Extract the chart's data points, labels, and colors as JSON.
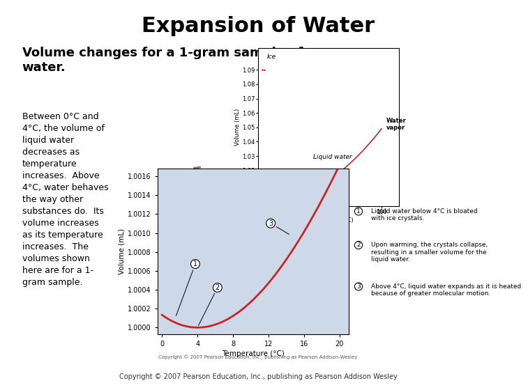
{
  "title": "Expansion of Water",
  "subtitle": "Volume changes for a 1-gram sample of\nwater.",
  "left_text": "Between 0°C and\n4°C, the volume of\nliquid water\ndecreases as\ntemperature\nincreases.  Above\n4°C, water behaves\nthe way other\nsubstances do.  Its\nvolume increases\nas its temperature\nincreases.  The\nvolumes shown\nhere are for a 1-\ngram sample.",
  "copyright_small": "Copyright © 2007 Pearson Education, Inc., publishing as Pearson Addison-Wesley",
  "copyright_large": "Copyright © 2007 Pearson Education, Inc., publishing as Pearson Addison Wesley",
  "inset_xlabel": "Temperature (°C)",
  "inset_ylabel": "Volume (mL)",
  "inset_ice_label": "Ice",
  "inset_water_label": "Liquid water",
  "inset_vapor_label": "Water\nvapor",
  "main_xlabel": "Temperature (°C)",
  "main_ylabel": "Volume (mL)",
  "bg_color": "#cdd9e8",
  "curve_color": "#cc2222",
  "note1_circle": "1",
  "note1_text": "Liquid water below 4°C is bloated\nwith ice crystals.",
  "note2_circle": "2",
  "note2_text": "Upon warming, the crystals collapse,\nresulting in a smaller volume for the\nliquid water.",
  "note3_circle": "3",
  "note3_text": "Above 4°C, liquid water expands as it is heated\nbecause of greater molecular motion."
}
